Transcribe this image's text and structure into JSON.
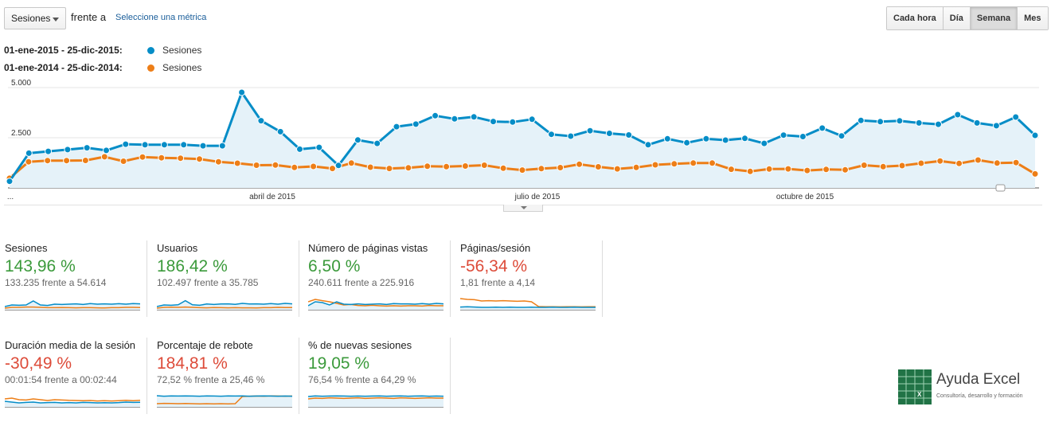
{
  "toolbar": {
    "metric_value": "Sesiones",
    "versus": "frente a",
    "select_metric": "Seleccione una métrica",
    "granularity": [
      "Cada hora",
      "Día",
      "Semana",
      "Mes"
    ],
    "active_granularity": "Semana"
  },
  "legend": {
    "current": {
      "range": "01-ene-2015 - 25-dic-2015:",
      "name": "Sesiones",
      "color": "#058dc7"
    },
    "previous": {
      "range": "01-ene-2014 - 25-dic-2014:",
      "name": "Sesiones",
      "color": "#ed7e17"
    }
  },
  "chart_data": {
    "type": "line",
    "title": "",
    "ylabel": "",
    "ylim": [
      0,
      5000
    ],
    "y_ticks": [
      "5.000",
      "2.500"
    ],
    "x_tick_labels": [
      "...",
      "abril de 2015",
      "julio de 2015",
      "octubre de 2015"
    ],
    "series": [
      {
        "name": "Sesiones 2015",
        "color": "#058dc7",
        "area": true,
        "values": [
          330,
          1730,
          1820,
          1910,
          2000,
          1870,
          2180,
          2150,
          2150,
          2150,
          2100,
          2100,
          4760,
          3350,
          2800,
          1930,
          2020,
          1120,
          2390,
          2220,
          3050,
          3180,
          3600,
          3440,
          3540,
          3310,
          3280,
          3420,
          2670,
          2580,
          2850,
          2720,
          2640,
          2150,
          2450,
          2250,
          2450,
          2380,
          2470,
          2220,
          2630,
          2560,
          2980,
          2590,
          3360,
          3300,
          3340,
          3240,
          3170,
          3650,
          3240,
          3100,
          3530,
          2620
        ]
      },
      {
        "name": "Sesiones 2014",
        "color": "#ed7e17",
        "area": false,
        "values": [
          480,
          1300,
          1360,
          1360,
          1370,
          1550,
          1330,
          1540,
          1500,
          1480,
          1440,
          1300,
          1230,
          1130,
          1140,
          1020,
          1070,
          970,
          1240,
          1030,
          970,
          1000,
          1080,
          1060,
          1090,
          1130,
          980,
          890,
          960,
          1010,
          1180,
          1050,
          950,
          1020,
          1150,
          1200,
          1240,
          1240,
          930,
          820,
          940,
          950,
          870,
          920,
          900,
          1130,
          1060,
          1110,
          1230,
          1340,
          1220,
          1390,
          1240,
          1260,
          700
        ]
      }
    ]
  },
  "metrics": [
    {
      "title": "Sesiones",
      "change": "143,96 %",
      "direction": "pos",
      "comparison": "133.235 frente a 54.614",
      "spark_2015": [
        0.25,
        0.35,
        0.33,
        0.35,
        0.6,
        0.35,
        0.32,
        0.4,
        0.38,
        0.4,
        0.42,
        0.38,
        0.44,
        0.4,
        0.42,
        0.4,
        0.43,
        0.4,
        0.44,
        0.42
      ],
      "spark_2014": [
        0.15,
        0.2,
        0.2,
        0.22,
        0.22,
        0.2,
        0.18,
        0.18,
        0.19,
        0.18,
        0.17,
        0.18,
        0.18,
        0.17,
        0.16,
        0.18,
        0.18,
        0.2,
        0.2,
        0.19
      ]
    },
    {
      "title": "Usuarios",
      "change": "186,42 %",
      "direction": "pos",
      "comparison": "102.497 frente a 35.785",
      "spark_2015": [
        0.25,
        0.35,
        0.33,
        0.36,
        0.62,
        0.36,
        0.33,
        0.41,
        0.38,
        0.41,
        0.42,
        0.39,
        0.45,
        0.41,
        0.42,
        0.4,
        0.44,
        0.4,
        0.45,
        0.42
      ],
      "spark_2014": [
        0.15,
        0.2,
        0.21,
        0.2,
        0.22,
        0.2,
        0.18,
        0.17,
        0.19,
        0.18,
        0.17,
        0.18,
        0.17,
        0.17,
        0.16,
        0.18,
        0.18,
        0.2,
        0.19,
        0.19
      ]
    },
    {
      "title": "Número de páginas vistas",
      "change": "6,50 %",
      "direction": "pos",
      "comparison": "240.611 frente a 225.916",
      "spark_2015": [
        0.3,
        0.55,
        0.5,
        0.35,
        0.55,
        0.4,
        0.38,
        0.42,
        0.38,
        0.4,
        0.42,
        0.38,
        0.44,
        0.42,
        0.42,
        0.4,
        0.44,
        0.4,
        0.45,
        0.42
      ],
      "spark_2014": [
        0.55,
        0.7,
        0.62,
        0.55,
        0.45,
        0.35,
        0.38,
        0.32,
        0.3,
        0.33,
        0.3,
        0.28,
        0.3,
        0.28,
        0.3,
        0.3,
        0.28,
        0.32,
        0.3,
        0.3
      ]
    },
    {
      "title": "Páginas/sesión",
      "change": "-56,34 %",
      "direction": "neg",
      "comparison": "1,81 frente a 4,14",
      "spark_2015": [
        0.22,
        0.24,
        0.22,
        0.2,
        0.2,
        0.21,
        0.2,
        0.21,
        0.2,
        0.2,
        0.21,
        0.2,
        0.2,
        0.21,
        0.2,
        0.2,
        0.21,
        0.2,
        0.2,
        0.2
      ],
      "spark_2014": [
        0.75,
        0.7,
        0.68,
        0.6,
        0.62,
        0.6,
        0.62,
        0.6,
        0.58,
        0.6,
        0.55,
        0.25,
        0.24,
        0.24,
        0.23,
        0.24,
        0.24,
        0.23,
        0.24,
        0.24
      ]
    },
    {
      "title": "Duración media de la sesión",
      "change": "-30,49 %",
      "direction": "neg",
      "comparison": "00:01:54 frente a 00:02:44",
      "spark_2015": [
        0.4,
        0.35,
        0.3,
        0.33,
        0.35,
        0.3,
        0.32,
        0.33,
        0.3,
        0.32,
        0.3,
        0.33,
        0.32,
        0.3,
        0.31,
        0.3,
        0.32,
        0.35,
        0.33,
        0.34
      ],
      "spark_2014": [
        0.55,
        0.6,
        0.5,
        0.48,
        0.55,
        0.5,
        0.45,
        0.5,
        0.48,
        0.46,
        0.45,
        0.44,
        0.45,
        0.42,
        0.44,
        0.42,
        0.44,
        0.46,
        0.44,
        0.46
      ]
    },
    {
      "title": "Porcentaje de rebote",
      "change": "184,81 %",
      "direction": "neg",
      "comparison": "72,52 % frente a 25,46 %",
      "spark_2015": [
        0.75,
        0.72,
        0.74,
        0.73,
        0.74,
        0.73,
        0.72,
        0.74,
        0.73,
        0.72,
        0.74,
        0.73,
        0.74,
        0.72,
        0.73,
        0.74,
        0.73,
        0.72,
        0.73,
        0.72
      ],
      "spark_2014": [
        0.25,
        0.27,
        0.26,
        0.25,
        0.26,
        0.25,
        0.24,
        0.25,
        0.24,
        0.25,
        0.24,
        0.25,
        0.7,
        0.72,
        0.73,
        0.72,
        0.74,
        0.73,
        0.72,
        0.73
      ]
    },
    {
      "title": "% de nuevas sesiones",
      "change": "19,05 %",
      "direction": "pos",
      "comparison": "76,54 % frente a 64,29 %",
      "spark_2015": [
        0.7,
        0.74,
        0.72,
        0.73,
        0.74,
        0.73,
        0.72,
        0.73,
        0.72,
        0.73,
        0.74,
        0.72,
        0.73,
        0.74,
        0.72,
        0.73,
        0.74,
        0.72,
        0.73,
        0.72
      ],
      "spark_2014": [
        0.55,
        0.6,
        0.58,
        0.62,
        0.6,
        0.58,
        0.6,
        0.62,
        0.58,
        0.6,
        0.62,
        0.6,
        0.58,
        0.62,
        0.6,
        0.58,
        0.6,
        0.62,
        0.6,
        0.6
      ]
    }
  ],
  "logo": {
    "name": "Ayuda Excel",
    "tagline": "Consultoría, desarrollo y formación"
  }
}
